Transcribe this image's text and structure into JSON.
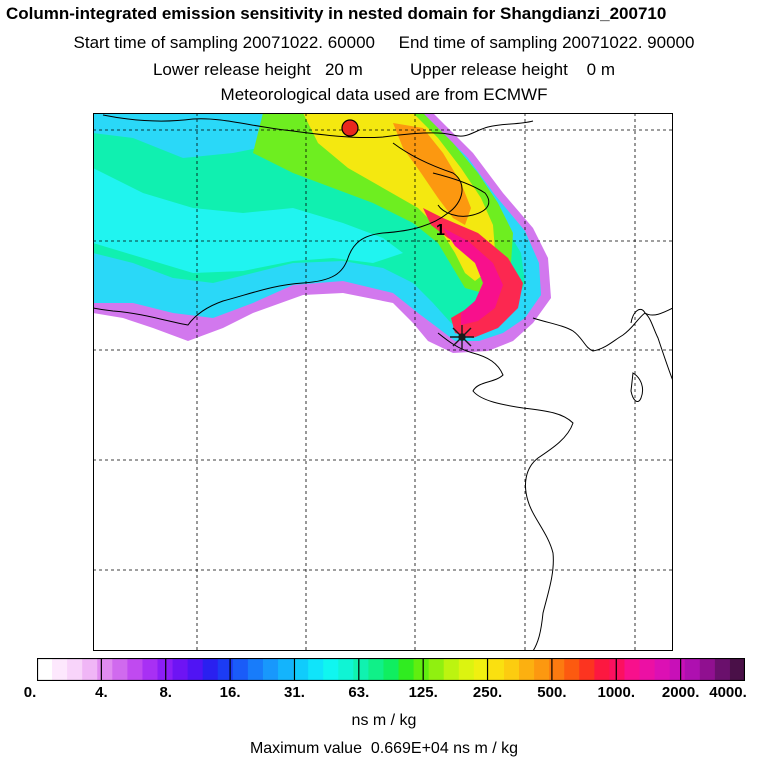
{
  "header": {
    "title": "Column-integrated emission sensitivity in nested domain for Shangdianzi_200710",
    "sampling_line": "Start time of sampling 20071022. 60000     End time of sampling 20071022. 90000",
    "release_line": "Lower release height   20 m          Upper release height    0 m",
    "meteo_line": "Meteorological data used are from ECMWF"
  },
  "map": {
    "contour_label": "1",
    "markers": [
      {
        "name": "station-red-dot",
        "color": "#e8281e"
      },
      {
        "name": "release-site-star",
        "color": "#1a1a1a"
      }
    ]
  },
  "colorbar": {
    "tick_labels": [
      "0.",
      "4.",
      "8.",
      "16.",
      "31.",
      "63.",
      "125.",
      "250.",
      "500.",
      "1000.",
      "2000.",
      "4000."
    ],
    "colors": [
      "#ffffff",
      "#fde8fd",
      "#f8d4fa",
      "#f0b6f6",
      "#e08cf0",
      "#d06aee",
      "#c04af0",
      "#a830f4",
      "#8c1ef6",
      "#6e14f4",
      "#5014f4",
      "#2a20f0",
      "#1c3cf4",
      "#1a5cf8",
      "#187cfa",
      "#1898fc",
      "#14b4fc",
      "#10ccfc",
      "#10e4fa",
      "#10f6f0",
      "#10f4d4",
      "#10f2b0",
      "#10f088",
      "#10ee60",
      "#30ec20",
      "#60ee10",
      "#90f010",
      "#bcf410",
      "#dcf410",
      "#f0f010",
      "#fae010",
      "#fccc10",
      "#fcb010",
      "#fc9810",
      "#fc7a10",
      "#fc5a10",
      "#fc3420",
      "#fc1840",
      "#fc1060",
      "#f8108c",
      "#ec10a4",
      "#dc10b4",
      "#c810b8",
      "#ae10b0",
      "#901090",
      "#6a106c",
      "#4a1048"
    ],
    "units": "ns m / kg",
    "max_value_text": "Maximum value  0.669E+04 ns m / kg"
  }
}
